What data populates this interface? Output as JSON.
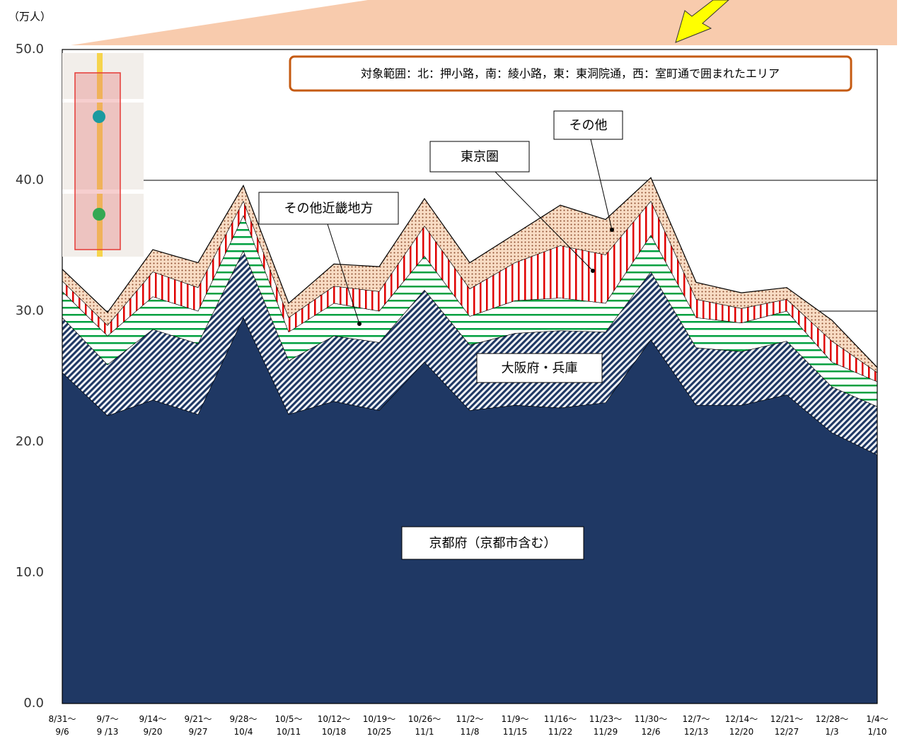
{
  "chart_data": {
    "type": "stacked_area",
    "unit_label": "（万人）",
    "annotation": "対象範囲：北：押小路，南：綾小路，東：東洞院通，西：室町通で囲まれたエリア",
    "categories": [
      "8/31～\n9/6",
      "9/7～\n9 /13",
      "9/14～\n9/20",
      "9/21～\n9/27",
      "9/28～\n10/4",
      "10/5～\n10/11",
      "10/12～\n10/18",
      "10/19～\n10/25",
      "10/26～\n11/1",
      "11/2～\n11/8",
      "11/9～\n11/15",
      "11/16～\n11/22",
      "11/23～\n11/29",
      "11/30～\n12/6",
      "12/7～\n12/13",
      "12/14～\n12/20",
      "12/21～\n12/27",
      "12/28～\n1/3",
      "1/4～\n1/10"
    ],
    "series": [
      {
        "name": "京都府（京都市含む）",
        "color": "#1f3864",
        "values": [
          25.3,
          22.0,
          23.2,
          22.1,
          29.5,
          22.1,
          23.1,
          22.4,
          26.1,
          22.4,
          22.8,
          22.6,
          23.0,
          27.8,
          22.8,
          22.8,
          23.6,
          20.7,
          19.0
        ]
      },
      {
        "name": "大阪府・兵庫",
        "color": "#1f3864",
        "values": [
          4.2,
          3.9,
          5.4,
          5.4,
          5.1,
          4.1,
          5.0,
          5.2,
          5.5,
          5.0,
          5.5,
          5.9,
          5.4,
          5.2,
          4.4,
          4.1,
          4.1,
          3.5,
          3.7
        ]
      },
      {
        "name": "その他近畿地方",
        "color": "#00a040",
        "values": [
          2.0,
          2.2,
          2.5,
          2.5,
          2.7,
          2.2,
          2.5,
          2.4,
          2.6,
          2.2,
          2.5,
          2.5,
          2.2,
          2.8,
          2.3,
          2.2,
          2.3,
          1.9,
          1.9
        ]
      },
      {
        "name": "東京圏",
        "color": "#e00000",
        "values": [
          0.8,
          0.8,
          1.9,
          1.8,
          1.1,
          1.1,
          1.3,
          1.5,
          2.3,
          2.1,
          2.9,
          4.0,
          3.7,
          2.6,
          1.4,
          1.1,
          0.9,
          1.6,
          0.7
        ]
      },
      {
        "name": "その他",
        "color": "#8b4a2b",
        "values": [
          0.9,
          1.0,
          1.7,
          1.9,
          1.2,
          1.1,
          1.7,
          1.9,
          2.1,
          2.0,
          2.2,
          3.1,
          2.7,
          1.8,
          1.3,
          1.2,
          0.9,
          1.6,
          0.4
        ]
      }
    ],
    "ylim": [
      0,
      50
    ],
    "yticks": [
      {
        "value": 0,
        "label": "0.0"
      },
      {
        "value": 10,
        "label": "10.0"
      },
      {
        "value": 20,
        "label": "20.0"
      },
      {
        "value": 30,
        "label": "30.0"
      },
      {
        "value": 40,
        "label": "40.0"
      },
      {
        "value": 50,
        "label": "50.0"
      }
    ],
    "grid": true
  }
}
